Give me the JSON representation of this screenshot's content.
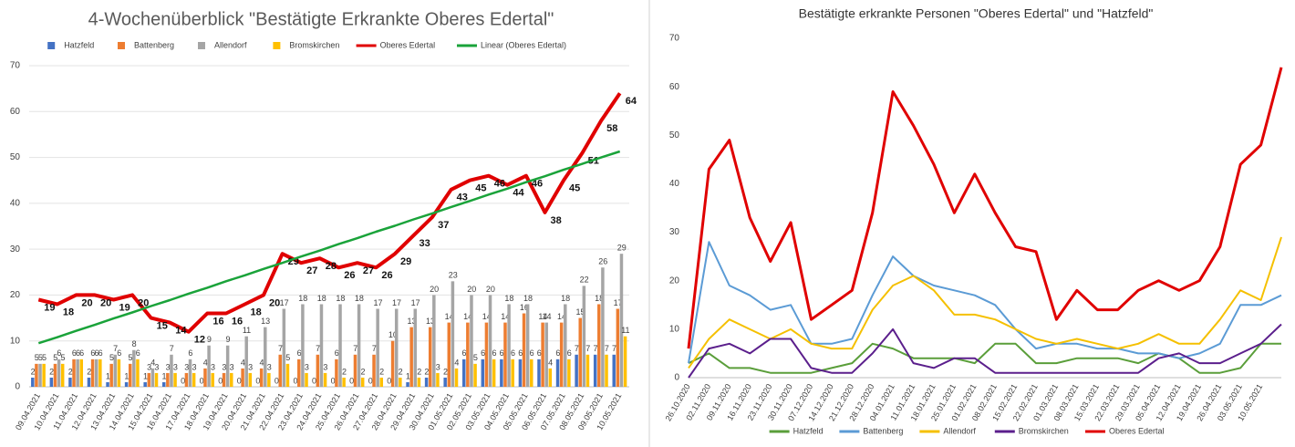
{
  "chart_data": [
    {
      "type": "bar",
      "title": "4-Wochenüberblick \"Bestätigte Erkrankte Oberes Edertal\"",
      "categories": [
        "09.04.2021",
        "10.04.2021",
        "11.04.2021",
        "12.04.2021",
        "13.04.2021",
        "14.04.2021",
        "15.04.2021",
        "16.04.2021",
        "17.04.2021",
        "18.04.2021",
        "19.04.2021",
        "20.04.2021",
        "21.04.2021",
        "22.04.2021",
        "23.04.2021",
        "24.04.2021",
        "25.04.2021",
        "26.04.2021",
        "27.04.2021",
        "28.04.2021",
        "29.04.2021",
        "30.04.2021",
        "01.05.2021",
        "02.05.2021",
        "03.05.2021",
        "04.05.2021",
        "05.05.2021",
        "06.05.2021",
        "07.05.2021",
        "08.05.2021",
        "09.05.2021",
        "10.05.2021"
      ],
      "series": [
        {
          "name": "Hatzfeld",
          "type": "bar",
          "labels": true,
          "color": "#4472c4",
          "values": [
            2,
            2,
            2,
            2,
            1,
            1,
            1,
            1,
            0,
            0,
            0,
            0,
            0,
            0,
            0,
            0,
            0,
            0,
            0,
            0,
            1,
            2,
            2,
            6,
            6,
            6,
            6,
            6,
            6,
            7,
            7,
            7
          ]
        },
        {
          "name": "Battenberg",
          "type": "bar",
          "labels": true,
          "color": "#ed7d31",
          "values": [
            5,
            5,
            6,
            6,
            5,
            5,
            3,
            3,
            3,
            4,
            3,
            4,
            4,
            7,
            6,
            7,
            6,
            7,
            7,
            10,
            13,
            13,
            14,
            14,
            14,
            14,
            16,
            14,
            14,
            15,
            18,
            17
          ]
        },
        {
          "name": "Allendorf",
          "type": "bar",
          "labels": true,
          "color": "#a5a5a5",
          "values": [
            5,
            6,
            6,
            6,
            7,
            8,
            4,
            7,
            6,
            9,
            9,
            11,
            13,
            17,
            18,
            18,
            18,
            18,
            17,
            17,
            17,
            20,
            23,
            20,
            20,
            18,
            18,
            14,
            18,
            22,
            26,
            29
          ]
        },
        {
          "name": "Bromskirchen",
          "type": "bar",
          "labels": true,
          "color": "#ffc000",
          "values": [
            5,
            5,
            6,
            6,
            6,
            6,
            3,
            3,
            3,
            3,
            3,
            3,
            3,
            5,
            3,
            3,
            2,
            2,
            2,
            2,
            2,
            3,
            4,
            5,
            6,
            6,
            6,
            4,
            6,
            7,
            7,
            11
          ]
        },
        {
          "name": "Oberes Edertal",
          "type": "line",
          "labels": true,
          "width": 4,
          "color": "#e00000",
          "values": [
            19,
            18,
            20,
            20,
            19,
            20,
            15,
            14,
            12,
            16,
            16,
            18,
            20,
            29,
            27,
            28,
            26,
            27,
            26,
            29,
            33,
            37,
            43,
            45,
            46,
            44,
            46,
            38,
            45,
            51,
            58,
            64
          ]
        },
        {
          "name": "Linear (Oberes Edertal)",
          "type": "line",
          "labels": false,
          "width": 2.5,
          "color": "#1aa33a",
          "values": [
            9.5,
            10.8,
            12.2,
            13.5,
            14.9,
            16.2,
            17.6,
            18.9,
            20.3,
            21.6,
            23.0,
            24.3,
            25.7,
            27.0,
            28.4,
            29.7,
            31.1,
            32.4,
            33.8,
            35.1,
            36.5,
            37.8,
            39.2,
            40.5,
            41.9,
            43.2,
            44.6,
            45.9,
            47.3,
            48.6,
            50.0,
            51.3
          ]
        }
      ],
      "ylim": [
        0,
        70
      ],
      "yticks": [
        0,
        10,
        20,
        30,
        40,
        50,
        60,
        70
      ],
      "grid": true,
      "legend": "top"
    },
    {
      "type": "line",
      "title": "Bestätigte erkrankte Personen \"Oberes Edertal\" und \"Hatzfeld\"",
      "categories": [
        "26.10.2020",
        "02.11.2020",
        "09.11.2020",
        "16.11.2020",
        "23.11.2020",
        "30.11.2020",
        "07.12.2020",
        "14.12.2020",
        "21.12.2020",
        "28.12.2020",
        "04.01.2021",
        "11.01.2021",
        "18.01.2021",
        "25.01.2021",
        "01.02.2021",
        "08.02.2021",
        "15.02.2021",
        "22.02.2021",
        "01.03.2021",
        "08.03.2021",
        "15.03.2021",
        "22.03.2021",
        "29.03.2021",
        "05.04.2021",
        "12.04.2021",
        "19.04.2021",
        "26.04.2021",
        "03.05.2021",
        "10.05.2021",
        null
      ],
      "series": [
        {
          "name": "Hatzfeld",
          "type": "line",
          "width": 2,
          "color": "#5a9e3a",
          "values": [
            3,
            5,
            2,
            2,
            1,
            1,
            1,
            2,
            3,
            7,
            6,
            4,
            4,
            4,
            3,
            7,
            7,
            3,
            3,
            4,
            4,
            4,
            3,
            5,
            4,
            1,
            1,
            2,
            7,
            7
          ]
        },
        {
          "name": "Battenberg",
          "type": "line",
          "width": 2,
          "color": "#5b9bd5",
          "values": [
            3,
            28,
            19,
            17,
            14,
            15,
            7,
            7,
            8,
            17,
            25,
            21,
            19,
            18,
            17,
            15,
            10,
            6,
            7,
            7,
            6,
            6,
            5,
            5,
            4,
            5,
            7,
            15,
            15,
            17
          ]
        },
        {
          "name": "Allendorf",
          "type": "line",
          "width": 2,
          "color": "#f5c000",
          "values": [
            2,
            8,
            12,
            10,
            8,
            10,
            7,
            6,
            6,
            14,
            19,
            21,
            18,
            13,
            13,
            12,
            10,
            8,
            7,
            8,
            7,
            6,
            7,
            9,
            7,
            7,
            12,
            18,
            16,
            29
          ]
        },
        {
          "name": "Bromskirchen",
          "type": "line",
          "width": 2,
          "color": "#5b1f8c",
          "values": [
            0,
            6,
            7,
            5,
            8,
            8,
            2,
            1,
            1,
            5,
            10,
            3,
            2,
            4,
            4,
            1,
            1,
            1,
            1,
            1,
            1,
            1,
            1,
            4,
            5,
            3,
            3,
            5,
            7,
            11
          ]
        },
        {
          "name": "Oberes Edertal",
          "type": "line",
          "width": 3,
          "color": "#e00000",
          "values": [
            6,
            43,
            49,
            33,
            24,
            32,
            12,
            15,
            18,
            34,
            59,
            52,
            44,
            34,
            42,
            34,
            27,
            26,
            12,
            18,
            14,
            14,
            18,
            20,
            18,
            20,
            27,
            44,
            48,
            64
          ]
        }
      ],
      "ylim": [
        0,
        70
      ],
      "yticks": [
        0,
        10,
        20,
        30,
        40,
        50,
        60,
        70
      ],
      "grid": false,
      "legend": "bottom"
    }
  ]
}
